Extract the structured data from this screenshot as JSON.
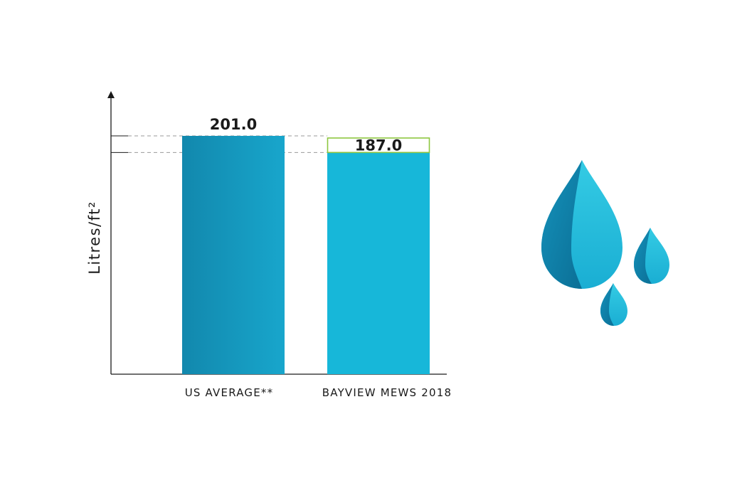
{
  "chart_data": {
    "type": "bar",
    "ylabel": "Litres/ft²",
    "categories": [
      "US AVERAGE**",
      "BAYVIEW MEWS 2018"
    ],
    "values": [
      201.0,
      187.0
    ],
    "value_labels": [
      "201.0",
      "187.0"
    ],
    "ylim": [
      0,
      201
    ],
    "grid": false,
    "reference_lines": [
      201.0,
      187.0
    ],
    "colors": {
      "bar_start": "#1288ad",
      "bar_end": "#18a6cc",
      "bar2": "#17b7d9",
      "highlight_box": "#8dc63f",
      "axis": "#1a1a1a",
      "guide": "#9a9a9a"
    }
  },
  "illustration": {
    "icon": "water-drops-icon",
    "colors": {
      "light": "#2bc3df",
      "mid": "#16a8cc",
      "dark": "#0d7fa6"
    }
  }
}
